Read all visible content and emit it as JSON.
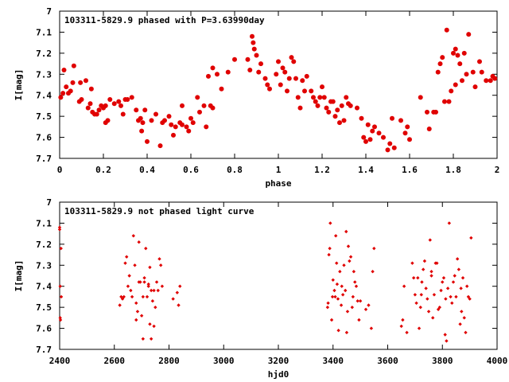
{
  "chart_data": [
    {
      "type": "scatter",
      "title": "103311-5829.9 phased with P=3.63990day",
      "xlabel": "phase",
      "ylabel": "I[mag]",
      "xlim": [
        0,
        2
      ],
      "ylim": [
        7.7,
        7.0
      ],
      "y_inverted": true,
      "grid": false,
      "marker_color": "#e00000",
      "marker": "filled-circle",
      "xticks": [
        "0",
        "0.2",
        "0.4",
        "0.6",
        "0.8",
        "1",
        "1.2",
        "1.4",
        "1.6",
        "1.8",
        "2"
      ],
      "yticks": [
        "7",
        "7.1",
        "7.2",
        "7.3",
        "7.4",
        "7.5",
        "7.6",
        "7.7"
      ],
      "points": [
        [
          0.005,
          7.41
        ],
        [
          0.015,
          7.39
        ],
        [
          0.02,
          7.28
        ],
        [
          0.03,
          7.36
        ],
        [
          0.04,
          7.39
        ],
        [
          0.05,
          7.38
        ],
        [
          0.06,
          7.34
        ],
        [
          0.065,
          7.26
        ],
        [
          0.09,
          7.43
        ],
        [
          0.095,
          7.34
        ],
        [
          0.1,
          7.42
        ],
        [
          0.12,
          7.33
        ],
        [
          0.13,
          7.46
        ],
        [
          0.14,
          7.44
        ],
        [
          0.145,
          7.37
        ],
        [
          0.15,
          7.48
        ],
        [
          0.16,
          7.49
        ],
        [
          0.17,
          7.49
        ],
        [
          0.18,
          7.47
        ],
        [
          0.19,
          7.45
        ],
        [
          0.2,
          7.46
        ],
        [
          0.21,
          7.45
        ],
        [
          0.21,
          7.53
        ],
        [
          0.22,
          7.52
        ],
        [
          0.23,
          7.42
        ],
        [
          0.25,
          7.44
        ],
        [
          0.27,
          7.43
        ],
        [
          0.28,
          7.45
        ],
        [
          0.29,
          7.49
        ],
        [
          0.3,
          7.42
        ],
        [
          0.31,
          7.42
        ],
        [
          0.33,
          7.41
        ],
        [
          0.35,
          7.47
        ],
        [
          0.36,
          7.52
        ],
        [
          0.37,
          7.51
        ],
        [
          0.375,
          7.57
        ],
        [
          0.38,
          7.53
        ],
        [
          0.39,
          7.47
        ],
        [
          0.4,
          7.62
        ],
        [
          0.42,
          7.52
        ],
        [
          0.44,
          7.49
        ],
        [
          0.46,
          7.64
        ],
        [
          0.47,
          7.53
        ],
        [
          0.48,
          7.52
        ],
        [
          0.5,
          7.5
        ],
        [
          0.51,
          7.54
        ],
        [
          0.52,
          7.59
        ],
        [
          0.53,
          7.55
        ],
        [
          0.55,
          7.53
        ],
        [
          0.56,
          7.45
        ],
        [
          0.56,
          7.54
        ],
        [
          0.58,
          7.55
        ],
        [
          0.59,
          7.57
        ],
        [
          0.6,
          7.51
        ],
        [
          0.61,
          7.53
        ],
        [
          0.63,
          7.41
        ],
        [
          0.64,
          7.48
        ],
        [
          0.66,
          7.45
        ],
        [
          0.67,
          7.55
        ],
        [
          0.68,
          7.31
        ],
        [
          0.69,
          7.45
        ],
        [
          0.7,
          7.27
        ],
        [
          0.7,
          7.46
        ],
        [
          0.72,
          7.3
        ],
        [
          0.74,
          7.37
        ],
        [
          0.77,
          7.29
        ],
        [
          0.8,
          7.23
        ],
        [
          0.86,
          7.23
        ],
        [
          0.87,
          7.28
        ],
        [
          0.88,
          7.12
        ],
        [
          0.885,
          7.15
        ],
        [
          0.89,
          7.18
        ],
        [
          0.9,
          7.21
        ],
        [
          0.91,
          7.29
        ],
        [
          0.92,
          7.25
        ],
        [
          0.94,
          7.32
        ],
        [
          0.95,
          7.35
        ],
        [
          0.96,
          7.37
        ],
        [
          0.99,
          7.3
        ],
        [
          1.0,
          7.24
        ],
        [
          1.01,
          7.35
        ],
        [
          1.02,
          7.27
        ],
        [
          1.03,
          7.29
        ],
        [
          1.04,
          7.38
        ],
        [
          1.05,
          7.32
        ],
        [
          1.06,
          7.22
        ],
        [
          1.07,
          7.24
        ],
        [
          1.08,
          7.32
        ],
        [
          1.09,
          7.41
        ],
        [
          1.1,
          7.46
        ],
        [
          1.11,
          7.33
        ],
        [
          1.12,
          7.38
        ],
        [
          1.13,
          7.31
        ],
        [
          1.15,
          7.38
        ],
        [
          1.16,
          7.41
        ],
        [
          1.17,
          7.43
        ],
        [
          1.18,
          7.45
        ],
        [
          1.19,
          7.41
        ],
        [
          1.2,
          7.36
        ],
        [
          1.21,
          7.41
        ],
        [
          1.22,
          7.46
        ],
        [
          1.23,
          7.48
        ],
        [
          1.24,
          7.43
        ],
        [
          1.25,
          7.43
        ],
        [
          1.26,
          7.5
        ],
        [
          1.27,
          7.47
        ],
        [
          1.28,
          7.53
        ],
        [
          1.29,
          7.45
        ],
        [
          1.3,
          7.52
        ],
        [
          1.31,
          7.41
        ],
        [
          1.32,
          7.44
        ],
        [
          1.33,
          7.45
        ],
        [
          1.36,
          7.46
        ],
        [
          1.38,
          7.51
        ],
        [
          1.39,
          7.6
        ],
        [
          1.4,
          7.62
        ],
        [
          1.41,
          7.54
        ],
        [
          1.42,
          7.61
        ],
        [
          1.43,
          7.57
        ],
        [
          1.44,
          7.55
        ],
        [
          1.46,
          7.58
        ],
        [
          1.48,
          7.6
        ],
        [
          1.5,
          7.66
        ],
        [
          1.51,
          7.63
        ],
        [
          1.52,
          7.51
        ],
        [
          1.53,
          7.65
        ],
        [
          1.56,
          7.52
        ],
        [
          1.58,
          7.58
        ],
        [
          1.59,
          7.55
        ],
        [
          1.6,
          7.61
        ],
        [
          1.65,
          7.41
        ],
        [
          1.68,
          7.48
        ],
        [
          1.69,
          7.56
        ],
        [
          1.71,
          7.48
        ],
        [
          1.72,
          7.48
        ],
        [
          1.73,
          7.29
        ],
        [
          1.74,
          7.25
        ],
        [
          1.75,
          7.22
        ],
        [
          1.76,
          7.43
        ],
        [
          1.77,
          7.09
        ],
        [
          1.78,
          7.43
        ],
        [
          1.79,
          7.38
        ],
        [
          1.8,
          7.2
        ],
        [
          1.81,
          7.18
        ],
        [
          1.81,
          7.35
        ],
        [
          1.82,
          7.21
        ],
        [
          1.83,
          7.25
        ],
        [
          1.84,
          7.33
        ],
        [
          1.85,
          7.2
        ],
        [
          1.86,
          7.3
        ],
        [
          1.87,
          7.11
        ],
        [
          1.89,
          7.29
        ],
        [
          1.9,
          7.36
        ],
        [
          1.92,
          7.24
        ],
        [
          1.93,
          7.29
        ],
        [
          1.95,
          7.33
        ],
        [
          1.97,
          7.33
        ],
        [
          1.98,
          7.31
        ],
        [
          1.99,
          7.32
        ]
      ]
    },
    {
      "type": "scatter",
      "title": "103311-5829.9 not phased light curve",
      "xlabel": "hjd0",
      "ylabel": "I[mag]",
      "xlim": [
        2400,
        4000
      ],
      "ylim": [
        7.7,
        7.0
      ],
      "y_inverted": true,
      "grid": false,
      "marker_color": "#e00000",
      "marker": "small-diamond",
      "xticks": [
        "2400",
        "2600",
        "2800",
        "3000",
        "3200",
        "3400",
        "3600",
        "3800",
        "4000"
      ],
      "yticks": [
        "7",
        "7.1",
        "7.2",
        "7.3",
        "7.4",
        "7.5",
        "7.6",
        "7.7"
      ],
      "points": [
        [
          2400,
          7.12
        ],
        [
          2400,
          7.13
        ],
        [
          2402,
          7.4
        ],
        [
          2402,
          7.55
        ],
        [
          2403,
          7.56
        ],
        [
          2405,
          7.22
        ],
        [
          2406,
          7.45
        ],
        [
          2620,
          7.49
        ],
        [
          2625,
          7.45
        ],
        [
          2630,
          7.46
        ],
        [
          2635,
          7.45
        ],
        [
          2640,
          7.29
        ],
        [
          2645,
          7.26
        ],
        [
          2650,
          7.4
        ],
        [
          2655,
          7.35
        ],
        [
          2660,
          7.42
        ],
        [
          2665,
          7.45
        ],
        [
          2670,
          7.16
        ],
        [
          2675,
          7.3
        ],
        [
          2680,
          7.56
        ],
        [
          2685,
          7.52
        ],
        [
          2690,
          7.19
        ],
        [
          2695,
          7.38
        ],
        [
          2700,
          7.54
        ],
        [
          2705,
          7.45
        ],
        [
          2710,
          7.38
        ],
        [
          2715,
          7.22
        ],
        [
          2720,
          7.45
        ],
        [
          2725,
          7.4
        ],
        [
          2730,
          7.31
        ],
        [
          2735,
          7.42
        ],
        [
          2740,
          7.47
        ],
        [
          2745,
          7.59
        ],
        [
          2750,
          7.5
        ],
        [
          2755,
          7.38
        ],
        [
          2760,
          7.42
        ],
        [
          2765,
          7.27
        ],
        [
          2770,
          7.3
        ],
        [
          2775,
          7.4
        ],
        [
          2815,
          7.46
        ],
        [
          2830,
          7.43
        ],
        [
          2835,
          7.49
        ],
        [
          2840,
          7.4
        ],
        [
          2690,
          7.38
        ],
        [
          2710,
          7.36
        ],
        [
          2725,
          7.39
        ],
        [
          2705,
          7.65
        ],
        [
          2735,
          7.65
        ],
        [
          2745,
          7.42
        ],
        [
          2680,
          7.48
        ],
        [
          2730,
          7.58
        ],
        [
          3380,
          7.5
        ],
        [
          3382,
          7.48
        ],
        [
          3385,
          7.25
        ],
        [
          3388,
          7.22
        ],
        [
          3390,
          7.1
        ],
        [
          3395,
          7.56
        ],
        [
          3398,
          7.45
        ],
        [
          3400,
          7.37
        ],
        [
          3405,
          7.42
        ],
        [
          3410,
          7.16
        ],
        [
          3413,
          7.29
        ],
        [
          3415,
          7.39
        ],
        [
          3418,
          7.46
        ],
        [
          3420,
          7.61
        ],
        [
          3425,
          7.33
        ],
        [
          3430,
          7.49
        ],
        [
          3432,
          7.4
        ],
        [
          3436,
          7.44
        ],
        [
          3440,
          7.3
        ],
        [
          3445,
          7.42
        ],
        [
          3450,
          7.62
        ],
        [
          3453,
          7.52
        ],
        [
          3456,
          7.21
        ],
        [
          3460,
          7.28
        ],
        [
          3465,
          7.26
        ],
        [
          3470,
          7.5
        ],
        [
          3473,
          7.45
        ],
        [
          3476,
          7.33
        ],
        [
          3480,
          7.38
        ],
        [
          3485,
          7.4
        ],
        [
          3490,
          7.47
        ],
        [
          3495,
          7.56
        ],
        [
          3500,
          7.47
        ],
        [
          3520,
          7.51
        ],
        [
          3530,
          7.49
        ],
        [
          3540,
          7.6
        ],
        [
          3545,
          7.33
        ],
        [
          3550,
          7.22
        ],
        [
          3448,
          7.14
        ],
        [
          3408,
          7.45
        ],
        [
          3650,
          7.59
        ],
        [
          3655,
          7.56
        ],
        [
          3660,
          7.4
        ],
        [
          3670,
          7.62
        ],
        [
          3690,
          7.29
        ],
        [
          3695,
          7.36
        ],
        [
          3700,
          7.44
        ],
        [
          3705,
          7.48
        ],
        [
          3710,
          7.36
        ],
        [
          3715,
          7.6
        ],
        [
          3720,
          7.5
        ],
        [
          3725,
          7.38
        ],
        [
          3730,
          7.32
        ],
        [
          3735,
          7.28
        ],
        [
          3740,
          7.41
        ],
        [
          3745,
          7.46
        ],
        [
          3750,
          7.52
        ],
        [
          3755,
          7.18
        ],
        [
          3760,
          7.33
        ],
        [
          3765,
          7.55
        ],
        [
          3770,
          7.44
        ],
        [
          3775,
          7.29
        ],
        [
          3780,
          7.29
        ],
        [
          3785,
          7.51
        ],
        [
          3790,
          7.5
        ],
        [
          3795,
          7.42
        ],
        [
          3800,
          7.38
        ],
        [
          3805,
          7.36
        ],
        [
          3810,
          7.63
        ],
        [
          3815,
          7.66
        ],
        [
          3820,
          7.41
        ],
        [
          3825,
          7.1
        ],
        [
          3830,
          7.45
        ],
        [
          3835,
          7.48
        ],
        [
          3840,
          7.38
        ],
        [
          3845,
          7.35
        ],
        [
          3850,
          7.45
        ],
        [
          3855,
          7.27
        ],
        [
          3860,
          7.32
        ],
        [
          3865,
          7.58
        ],
        [
          3870,
          7.52
        ],
        [
          3875,
          7.36
        ],
        [
          3880,
          7.55
        ],
        [
          3885,
          7.62
        ],
        [
          3890,
          7.4
        ],
        [
          3895,
          7.45
        ],
        [
          3900,
          7.46
        ],
        [
          3905,
          7.17
        ],
        [
          3723,
          7.44
        ],
        [
          3760,
          7.35
        ],
        [
          3812,
          7.46
        ],
        [
          3868,
          7.41
        ]
      ]
    }
  ]
}
